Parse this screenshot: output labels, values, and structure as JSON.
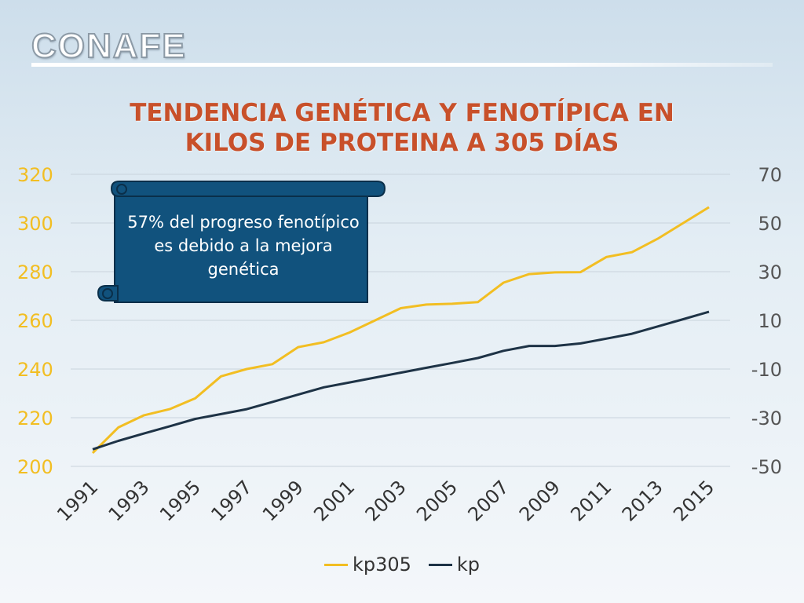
{
  "logo": {
    "text": "CONAFE"
  },
  "title_lines": [
    "TENDENCIA GENÉTICA Y FENOTÍPICA EN",
    "KILOS DE PROTEINA A 305 DÍAS"
  ],
  "callout": {
    "text": "57% del  progreso fenotípico es debido a la mejora genética"
  },
  "colors": {
    "kp305": "#f2be22",
    "kp": "#1e3346",
    "left_axis": "#f2be22",
    "right_axis": "#555555",
    "title": "#c8502a",
    "callout_fill": "#11527d",
    "callout_stroke": "#0a2f4a"
  },
  "chart_data": {
    "type": "line",
    "x": [
      1991,
      1992,
      1993,
      1994,
      1995,
      1996,
      1997,
      1998,
      1999,
      2000,
      2001,
      2002,
      2003,
      2004,
      2005,
      2006,
      2007,
      2008,
      2009,
      2010,
      2011,
      2012,
      2013,
      2014,
      2015
    ],
    "x_tick_labels": [
      "1991",
      "1993",
      "1995",
      "1997",
      "1999",
      "2001",
      "2003",
      "2005",
      "2007",
      "2009",
      "2011",
      "2013",
      "2015"
    ],
    "y_left": {
      "ticks": [
        "320",
        "300",
        "280",
        "260",
        "240",
        "220",
        "200"
      ],
      "ylim": [
        200,
        320
      ]
    },
    "y_right": {
      "ticks": [
        "70",
        "50",
        "30",
        "10",
        "-10",
        "-30",
        "-50"
      ],
      "ylim": [
        -50,
        70
      ]
    },
    "grid": true,
    "legend_position": "bottom",
    "series": [
      {
        "name": "kp305",
        "axis": "left",
        "values": [
          205.5,
          216,
          221,
          223.5,
          228,
          237,
          240,
          242,
          249,
          251,
          255,
          260,
          265,
          266.5,
          266.8,
          267.5,
          275.5,
          279,
          279.7,
          279.8,
          286,
          288,
          293.5,
          300,
          306.5
        ]
      },
      {
        "name": "kp",
        "axis": "right",
        "values": [
          -43,
          -39.5,
          -36.5,
          -33.5,
          -30.5,
          -28.5,
          -26.5,
          -23.5,
          -20.5,
          -17.5,
          -15.5,
          -13.5,
          -11.5,
          -9.5,
          -7.5,
          -5.5,
          -2.5,
          -0.5,
          -0.5,
          0.5,
          2.5,
          4.5,
          7.5,
          10.5,
          13.5
        ]
      }
    ]
  }
}
